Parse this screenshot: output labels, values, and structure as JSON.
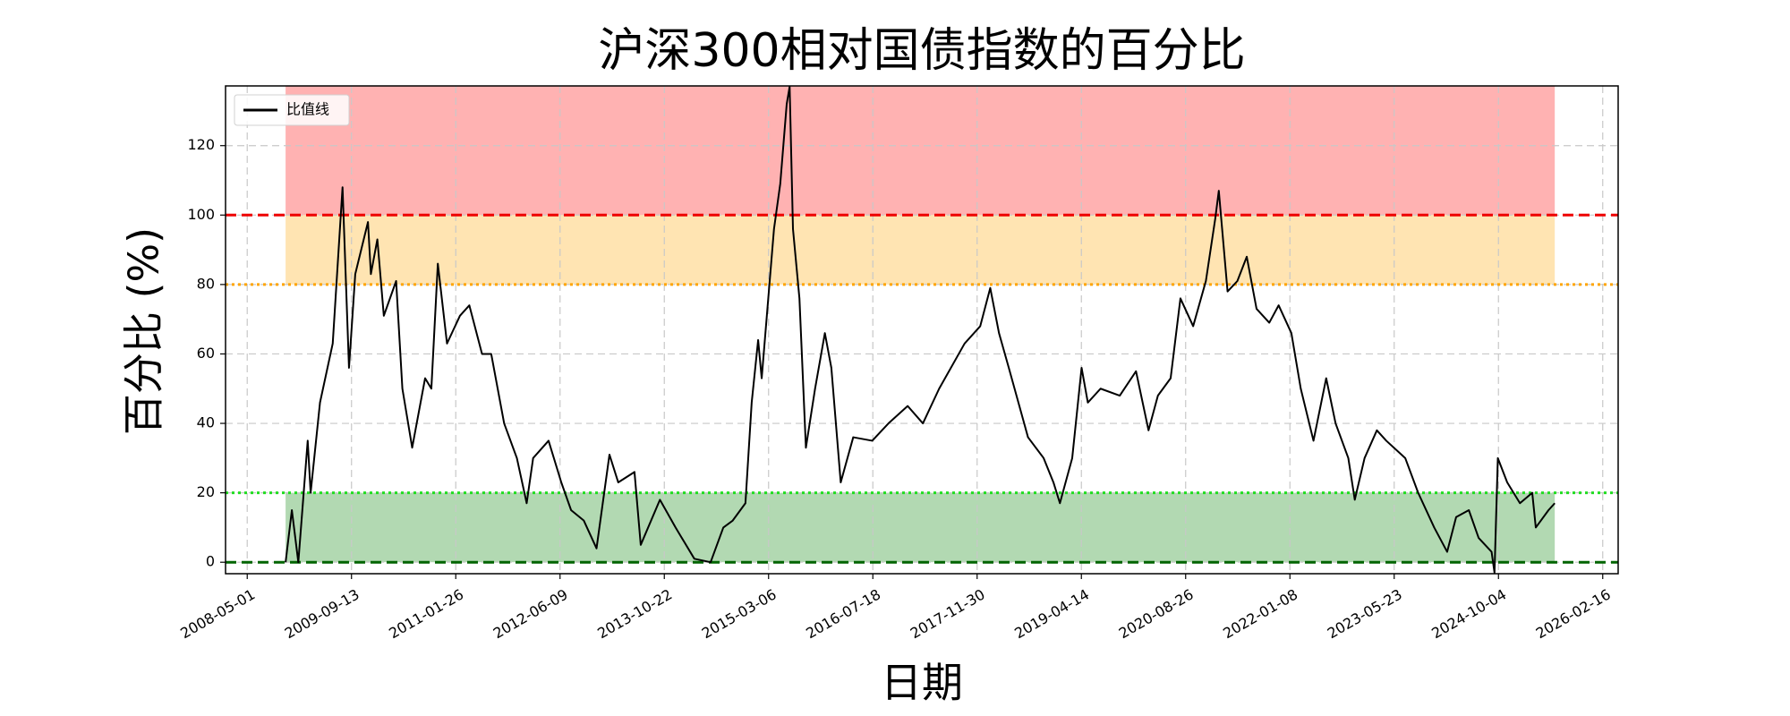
{
  "chart_data": {
    "type": "line",
    "title": "沪深300相对国债指数的百分比",
    "x_label": "日期",
    "y_label": "百分比 (%)",
    "x": [
      "2008-11-01",
      "2008-12-01",
      "2009-01-01",
      "2009-02-15",
      "2009-03-01",
      "2009-04-15",
      "2009-06-15",
      "2009-08-01",
      "2009-09-01",
      "2009-10-01",
      "2009-12-01",
      "2009-12-15",
      "2010-01-15",
      "2010-02-15",
      "2010-04-15",
      "2010-05-15",
      "2010-07-01",
      "2010-09-01",
      "2010-10-01",
      "2010-11-01",
      "2010-12-15",
      "2011-02-15",
      "2011-04-01",
      "2011-06-01",
      "2011-07-15",
      "2011-09-15",
      "2011-11-15",
      "2012-01-01",
      "2012-02-01",
      "2012-04-15",
      "2012-06-15",
      "2012-08-01",
      "2012-10-01",
      "2012-12-01",
      "2013-02-01",
      "2013-03-15",
      "2013-06-01",
      "2013-07-01",
      "2013-10-01",
      "2013-12-15",
      "2014-03-15",
      "2014-06-01",
      "2014-08-01",
      "2014-09-15",
      "2014-11-15",
      "2014-12-15",
      "2015-01-15",
      "2015-02-01",
      "2015-04-01",
      "2015-05-01",
      "2015-06-01",
      "2015-06-15",
      "2015-07-01",
      "2015-08-01",
      "2015-09-01",
      "2015-10-15",
      "2015-12-01",
      "2016-01-01",
      "2016-02-15",
      "2016-04-15",
      "2016-07-15",
      "2016-10-01",
      "2017-01-01",
      "2017-03-15",
      "2017-06-01",
      "2017-10-01",
      "2017-12-15",
      "2018-02-01",
      "2018-03-15",
      "2018-05-01",
      "2018-08-01",
      "2018-10-15",
      "2018-12-01",
      "2019-01-01",
      "2019-03-01",
      "2019-04-15",
      "2019-05-15",
      "2019-07-15",
      "2019-10-15",
      "2020-01-01",
      "2020-03-01",
      "2020-04-15",
      "2020-06-15",
      "2020-08-01",
      "2020-10-01",
      "2020-12-01",
      "2021-01-15",
      "2021-02-01",
      "2021-03-15",
      "2021-05-01",
      "2021-06-15",
      "2021-08-01",
      "2021-10-01",
      "2021-11-15",
      "2022-01-15",
      "2022-03-01",
      "2022-05-01",
      "2022-07-01",
      "2022-08-15",
      "2022-10-15",
      "2022-11-15",
      "2023-01-01",
      "2023-03-01",
      "2023-04-15",
      "2023-07-15",
      "2023-09-15",
      "2023-12-01",
      "2024-02-01",
      "2024-03-15",
      "2024-05-15",
      "2024-07-01",
      "2024-09-01",
      "2024-09-15",
      "2024-10-01",
      "2024-11-15",
      "2025-01-15",
      "2025-03-15",
      "2025-04-01",
      "2025-06-01",
      "2025-07-01"
    ],
    "series": [
      {
        "name": "比值线",
        "color": "#000000",
        "values": [
          0,
          15,
          0,
          35,
          20,
          46,
          63,
          108,
          56,
          83,
          98,
          83,
          93,
          71,
          81,
          50,
          33,
          53,
          50,
          86,
          63,
          71,
          74,
          60,
          60,
          40,
          30,
          17,
          30,
          35,
          23,
          15,
          12,
          4,
          31,
          23,
          26,
          5,
          18,
          10,
          1,
          0,
          10,
          12,
          17,
          46,
          64,
          53,
          96,
          109,
          132,
          137,
          96,
          76,
          33,
          50,
          66,
          56,
          23,
          36,
          35,
          40,
          45,
          40,
          50,
          63,
          68,
          79,
          66,
          56,
          36,
          30,
          23,
          17,
          30,
          56,
          46,
          50,
          48,
          55,
          38,
          48,
          53,
          76,
          68,
          81,
          99,
          107,
          78,
          81,
          88,
          73,
          69,
          74,
          66,
          50,
          35,
          53,
          40,
          30,
          18,
          30,
          38,
          35,
          30,
          20,
          10,
          3,
          13,
          15,
          7,
          3,
          -3,
          30,
          23,
          17,
          20,
          10,
          15,
          17
        ]
      }
    ],
    "xlim": [
      "2008-01-18",
      "2026-05-01"
    ],
    "xticks": [
      "2008-05-01",
      "2009-09-13",
      "2011-01-26",
      "2012-06-09",
      "2013-10-22",
      "2015-03-06",
      "2016-07-18",
      "2017-11-30",
      "2019-04-14",
      "2020-08-26",
      "2022-01-08",
      "2023-05-23",
      "2024-10-04",
      "2026-02-16"
    ],
    "ylim": [
      -3.3,
      137.2
    ],
    "yticks": [
      0,
      20,
      40,
      60,
      80,
      100,
      120
    ],
    "grid": true,
    "legend": "upper left",
    "bands": [
      {
        "from": 100,
        "to": 137.2,
        "color": "#ff0000"
      },
      {
        "from": 80,
        "to": 100,
        "color": "#ffa500"
      },
      {
        "from": 0,
        "to": 20,
        "color": "#008000"
      }
    ],
    "reference_lines": [
      {
        "value": 100,
        "color": "#ee0000",
        "style": "dashed"
      },
      {
        "value": 80,
        "color": "#ffa500",
        "style": "dotted"
      },
      {
        "value": 20,
        "color": "#22dd22",
        "style": "dotted"
      },
      {
        "value": 0,
        "color": "#006400",
        "style": "dashed"
      }
    ]
  }
}
